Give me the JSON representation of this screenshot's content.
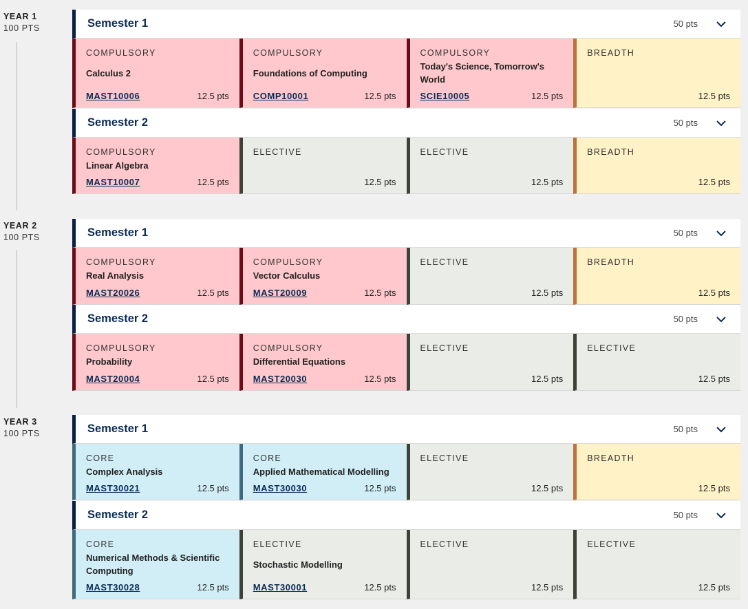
{
  "years": [
    {
      "title": "YEAR 1",
      "pts": "100 PTS",
      "semesters": [
        {
          "title": "Semester 1",
          "pts": "50 pts",
          "subjects": [
            {
              "kind": "compulsory",
              "type": "COMPULSORY",
              "name": "Calculus 2",
              "code": "MAST10006",
              "pts": "12.5 pts"
            },
            {
              "kind": "compulsory",
              "type": "COMPULSORY",
              "name": "Foundations of Computing",
              "code": "COMP10001",
              "pts": "12.5 pts"
            },
            {
              "kind": "compulsory",
              "type": "COMPULSORY",
              "name": "Today's Science, Tomorrow's World",
              "code": "SCIE10005",
              "pts": "12.5 pts"
            },
            {
              "kind": "breadth",
              "type": "BREADTH",
              "name": "",
              "code": "",
              "pts": "12.5 pts"
            }
          ]
        },
        {
          "title": "Semester 2",
          "pts": "50 pts",
          "subjects": [
            {
              "kind": "compulsory",
              "type": "COMPULSORY",
              "name": "Linear Algebra",
              "code": "MAST10007",
              "pts": "12.5 pts"
            },
            {
              "kind": "elective",
              "type": "ELECTIVE",
              "name": "",
              "code": "",
              "pts": "12.5 pts"
            },
            {
              "kind": "elective",
              "type": "ELECTIVE",
              "name": "",
              "code": "",
              "pts": "12.5 pts"
            },
            {
              "kind": "breadth",
              "type": "BREADTH",
              "name": "",
              "code": "",
              "pts": "12.5 pts"
            }
          ]
        }
      ]
    },
    {
      "title": "YEAR 2",
      "pts": "100 PTS",
      "semesters": [
        {
          "title": "Semester 1",
          "pts": "50 pts",
          "subjects": [
            {
              "kind": "compulsory",
              "type": "COMPULSORY",
              "name": "Real Analysis",
              "code": "MAST20026",
              "pts": "12.5 pts"
            },
            {
              "kind": "compulsory",
              "type": "COMPULSORY",
              "name": "Vector Calculus",
              "code": "MAST20009",
              "pts": "12.5 pts"
            },
            {
              "kind": "elective",
              "type": "ELECTIVE",
              "name": "",
              "code": "",
              "pts": "12.5 pts"
            },
            {
              "kind": "breadth",
              "type": "BREADTH",
              "name": "",
              "code": "",
              "pts": "12.5 pts"
            }
          ]
        },
        {
          "title": "Semester 2",
          "pts": "50 pts",
          "subjects": [
            {
              "kind": "compulsory",
              "type": "COMPULSORY",
              "name": "Probability",
              "code": "MAST20004",
              "pts": "12.5 pts"
            },
            {
              "kind": "compulsory",
              "type": "COMPULSORY",
              "name": "Differential Equations",
              "code": "MAST20030",
              "pts": "12.5 pts"
            },
            {
              "kind": "elective",
              "type": "ELECTIVE",
              "name": "",
              "code": "",
              "pts": "12.5 pts"
            },
            {
              "kind": "elective",
              "type": "ELECTIVE",
              "name": "",
              "code": "",
              "pts": "12.5 pts"
            }
          ]
        }
      ]
    },
    {
      "title": "YEAR 3",
      "pts": "100 PTS",
      "semesters": [
        {
          "title": "Semester 1",
          "pts": "50 pts",
          "subjects": [
            {
              "kind": "core",
              "type": "CORE",
              "name": "Complex Analysis",
              "code": "MAST30021",
              "pts": "12.5 pts"
            },
            {
              "kind": "core",
              "type": "CORE",
              "name": "Applied Mathematical Modelling",
              "code": "MAST30030",
              "pts": "12.5 pts"
            },
            {
              "kind": "elective",
              "type": "ELECTIVE",
              "name": "",
              "code": "",
              "pts": "12.5 pts"
            },
            {
              "kind": "breadth",
              "type": "BREADTH",
              "name": "",
              "code": "",
              "pts": "12.5 pts"
            }
          ]
        },
        {
          "title": "Semester 2",
          "pts": "50 pts",
          "subjects": [
            {
              "kind": "core",
              "type": "CORE",
              "name": "Numerical Methods & Scientific Computing",
              "code": "MAST30028",
              "pts": "12.5 pts"
            },
            {
              "kind": "elective",
              "type": "ELECTIVE",
              "name": "Stochastic Modelling",
              "code": "MAST30001",
              "pts": "12.5 pts"
            },
            {
              "kind": "elective",
              "type": "ELECTIVE",
              "name": "",
              "code": "",
              "pts": "12.5 pts"
            },
            {
              "kind": "elective",
              "type": "ELECTIVE",
              "name": "",
              "code": "",
              "pts": "12.5 pts"
            }
          ]
        }
      ]
    }
  ],
  "icons": {
    "semester_toggle": "chevron-down-icon"
  },
  "colors": {
    "compulsory_bg": "#fec8cc",
    "compulsory_bar": "#6d0b1a",
    "elective_bg": "#e9ece7",
    "elective_bar": "#3d4238",
    "breadth_bg": "#fef2c6",
    "breadth_bar": "#b87340",
    "core_bg": "#d1eef7",
    "core_bar": "#3e6a80",
    "semester_bar": "#0a2046",
    "semester_title": "#0a2b55"
  }
}
